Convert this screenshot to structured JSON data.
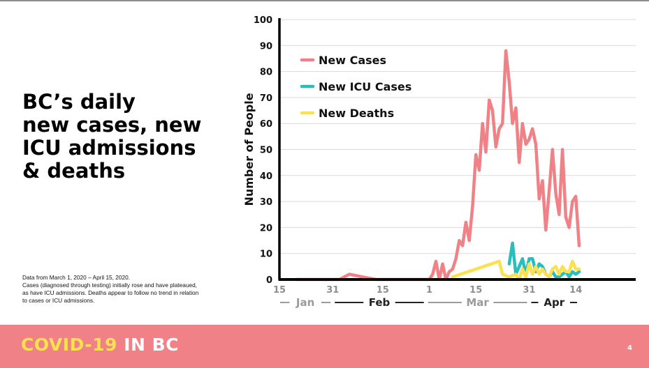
{
  "title_lines": [
    "BC’s daily",
    "new cases, new",
    "ICU admissions",
    "& deaths"
  ],
  "notes": [
    "Data from March 1, 2020 – April 15, 2020.",
    "Cases (diagnosed through testing) initially rose and have plateaued, as have ICU admissions. Deaths appear to follow no trend in relation to cases or ICU admissions."
  ],
  "footer": {
    "brand_part1": "COVID-19",
    "brand_part2": "IN BC",
    "page_number": "4",
    "background": "#ef8187"
  },
  "chart_data": {
    "type": "line",
    "ylabel": "Number of People",
    "ylim": [
      0,
      100
    ],
    "yticks": [
      0,
      10,
      20,
      30,
      40,
      50,
      60,
      70,
      80,
      90,
      100
    ],
    "grid": true,
    "legend_position": "top-left",
    "x_domain": [
      1,
      108
    ],
    "x_ticks": [
      {
        "label": "15",
        "x": 1
      },
      {
        "label": "31",
        "x": 17
      },
      {
        "label": "15",
        "x": 32
      },
      {
        "label": "1",
        "x": 46
      },
      {
        "label": "15",
        "x": 60
      },
      {
        "label": "31",
        "x": 76
      },
      {
        "label": "14",
        "x": 90
      }
    ],
    "month_labels": [
      {
        "label": "Jan",
        "from": 1,
        "to": 17,
        "color": "#9a9a9a"
      },
      {
        "label": "Feb",
        "from": 17,
        "to": 45,
        "color": "#222222"
      },
      {
        "label": "Mar",
        "from": 45,
        "to": 76,
        "color": "#9a9a9a"
      },
      {
        "label": "Apr",
        "from": 76,
        "to": 91,
        "color": "#222222"
      }
    ],
    "series": [
      {
        "name": "New Cases",
        "color": "#ef8187",
        "points": [
          [
            6,
            0
          ],
          [
            12,
            0
          ],
          [
            16,
            0
          ],
          [
            19,
            0
          ],
          [
            22,
            2
          ],
          [
            26,
            1
          ],
          [
            30,
            0
          ],
          [
            36,
            0
          ],
          [
            40,
            0
          ],
          [
            45,
            0
          ],
          [
            46,
            0
          ],
          [
            47,
            2
          ],
          [
            48,
            7
          ],
          [
            49,
            0
          ],
          [
            50,
            6
          ],
          [
            51,
            0
          ],
          [
            52,
            3
          ],
          [
            53,
            4
          ],
          [
            54,
            8
          ],
          [
            55,
            15
          ],
          [
            56,
            13
          ],
          [
            57,
            22
          ],
          [
            58,
            15
          ],
          [
            59,
            28
          ],
          [
            60,
            48
          ],
          [
            61,
            42
          ],
          [
            62,
            60
          ],
          [
            63,
            49
          ],
          [
            64,
            69
          ],
          [
            65,
            65
          ],
          [
            66,
            51
          ],
          [
            67,
            58
          ],
          [
            68,
            60
          ],
          [
            69,
            88
          ],
          [
            70,
            76
          ],
          [
            71,
            60
          ],
          [
            72,
            66
          ],
          [
            73,
            45
          ],
          [
            74,
            60
          ],
          [
            75,
            52
          ],
          [
            76,
            54
          ],
          [
            77,
            58
          ],
          [
            78,
            52
          ],
          [
            79,
            31
          ],
          [
            80,
            38
          ],
          [
            81,
            19
          ],
          [
            82,
            34
          ],
          [
            83,
            50
          ],
          [
            84,
            33
          ],
          [
            85,
            25
          ],
          [
            86,
            50
          ],
          [
            87,
            24
          ],
          [
            88,
            20
          ],
          [
            89,
            30
          ],
          [
            90,
            32
          ],
          [
            91,
            13
          ]
        ]
      },
      {
        "name": "New ICU Cases",
        "color": "#2bbdbd",
        "points": [
          [
            70,
            6
          ],
          [
            71,
            14
          ],
          [
            72,
            2
          ],
          [
            73,
            5
          ],
          [
            74,
            8
          ],
          [
            75,
            2
          ],
          [
            76,
            8
          ],
          [
            77,
            8
          ],
          [
            78,
            3
          ],
          [
            79,
            6
          ],
          [
            80,
            5
          ],
          [
            81,
            2
          ],
          [
            82,
            1
          ],
          [
            83,
            3
          ],
          [
            84,
            1
          ],
          [
            85,
            1
          ],
          [
            86,
            2
          ],
          [
            87,
            3
          ],
          [
            88,
            1
          ],
          [
            89,
            3
          ],
          [
            90,
            2
          ],
          [
            91,
            3
          ]
        ]
      },
      {
        "name": "New Deaths",
        "color": "#fbe04f",
        "points": [
          [
            53,
            1
          ],
          [
            60,
            4
          ],
          [
            67,
            7
          ],
          [
            68,
            2
          ],
          [
            70,
            1
          ],
          [
            72,
            2
          ],
          [
            73,
            0
          ],
          [
            74,
            4
          ],
          [
            75,
            1
          ],
          [
            76,
            6
          ],
          [
            77,
            2
          ],
          [
            78,
            5
          ],
          [
            79,
            2
          ],
          [
            80,
            4
          ],
          [
            81,
            2
          ],
          [
            82,
            1
          ],
          [
            83,
            4
          ],
          [
            84,
            5
          ],
          [
            85,
            2
          ],
          [
            86,
            5
          ],
          [
            87,
            3
          ],
          [
            88,
            3
          ],
          [
            89,
            7
          ],
          [
            90,
            4
          ],
          [
            91,
            4
          ]
        ]
      }
    ]
  }
}
